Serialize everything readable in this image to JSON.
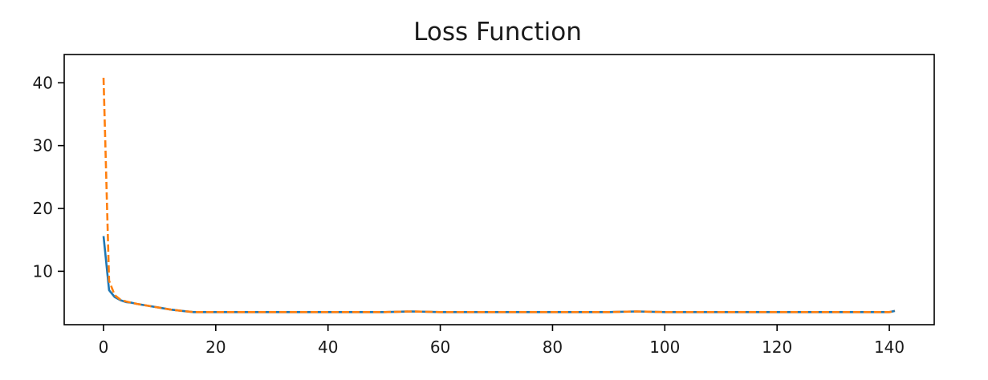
{
  "chart_data": {
    "type": "line",
    "title": "Loss Function",
    "xlabel": "",
    "ylabel": "",
    "xlim": [
      -7,
      148
    ],
    "ylim": [
      1.5,
      44.5
    ],
    "xticks": [
      0,
      20,
      40,
      60,
      80,
      100,
      120,
      140
    ],
    "yticks": [
      10,
      20,
      30,
      40
    ],
    "grid": false,
    "legend": "none",
    "series": [
      {
        "style": "solid",
        "color": "#1f77b4",
        "x": [
          0,
          1,
          2,
          3,
          4,
          5,
          6,
          8,
          10,
          12,
          14,
          16,
          18,
          20,
          25,
          30,
          40,
          50,
          55,
          60,
          70,
          80,
          90,
          95,
          100,
          110,
          120,
          130,
          140,
          141
        ],
        "y": [
          15.6,
          7.0,
          5.9,
          5.4,
          5.1,
          5.0,
          4.8,
          4.5,
          4.2,
          3.9,
          3.7,
          3.5,
          3.5,
          3.5,
          3.5,
          3.5,
          3.5,
          3.5,
          3.6,
          3.5,
          3.5,
          3.5,
          3.5,
          3.6,
          3.5,
          3.5,
          3.5,
          3.5,
          3.5,
          3.7
        ]
      },
      {
        "style": "dashed",
        "color": "#ff7f0e",
        "x": [
          0,
          1,
          2,
          3,
          4,
          5,
          6,
          8,
          10,
          12,
          14,
          16,
          18,
          20,
          25,
          30,
          40,
          50,
          55,
          60,
          70,
          80,
          90,
          95,
          100,
          110,
          120,
          130,
          140,
          141
        ],
        "y": [
          40.8,
          8.5,
          6.2,
          5.5,
          5.2,
          5.0,
          4.8,
          4.5,
          4.2,
          3.9,
          3.7,
          3.5,
          3.5,
          3.5,
          3.5,
          3.5,
          3.5,
          3.5,
          3.6,
          3.5,
          3.5,
          3.5,
          3.5,
          3.6,
          3.5,
          3.5,
          3.5,
          3.5,
          3.5,
          3.7
        ]
      }
    ]
  }
}
